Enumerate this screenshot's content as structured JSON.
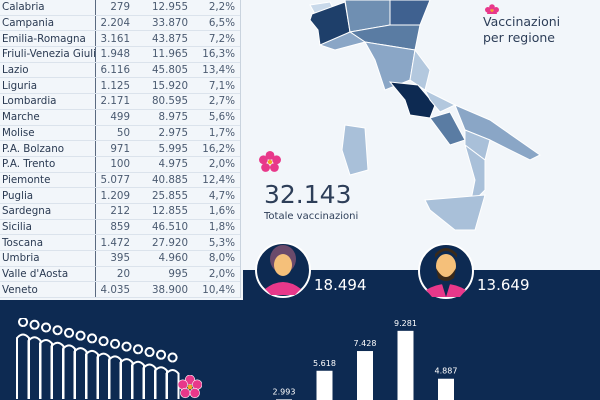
{
  "table": {
    "rows": [
      [
        "Calabria",
        "279",
        "12.955",
        "2,2%"
      ],
      [
        "Campania",
        "2.204",
        "33.870",
        "6,5%"
      ],
      [
        "Emilia-Romagna",
        "3.161",
        "43.875",
        "7,2%"
      ],
      [
        "Friuli-Venezia Giulia",
        "1.948",
        "11.965",
        "16,3%"
      ],
      [
        "Lazio",
        "6.116",
        "45.805",
        "13,4%"
      ],
      [
        "Liguria",
        "1.125",
        "15.920",
        "7,1%"
      ],
      [
        "Lombardia",
        "2.171",
        "80.595",
        "2,7%"
      ],
      [
        "Marche",
        "499",
        "8.975",
        "5,6%"
      ],
      [
        "Molise",
        "50",
        "2.975",
        "1,7%"
      ],
      [
        "P.A. Bolzano",
        "971",
        "5.995",
        "16,2%"
      ],
      [
        "P.A. Trento",
        "100",
        "4.975",
        "2,0%"
      ],
      [
        "Piemonte",
        "5.077",
        "40.885",
        "12,4%"
      ],
      [
        "Puglia",
        "1.209",
        "25.855",
        "4,7%"
      ],
      [
        "Sardegna",
        "212",
        "12.855",
        "1,6%"
      ],
      [
        "Sicilia",
        "859",
        "46.510",
        "1,8%"
      ],
      [
        "Toscana",
        "1.472",
        "27.920",
        "5,3%"
      ],
      [
        "Umbria",
        "395",
        "4.960",
        "8,0%"
      ],
      [
        "Valle d'Aosta",
        "20",
        "995",
        "2,0%"
      ],
      [
        "Veneto",
        "4.035",
        "38.900",
        "10,4%"
      ]
    ]
  },
  "map": {
    "title_line1": "Vaccinazioni",
    "title_line2": "per regione",
    "colors": {
      "dark": "#0d2a52",
      "mid": "#4a6d94",
      "light": "#a9c0d9",
      "pale": "#c9d9ea"
    }
  },
  "summary": {
    "total": "32.143",
    "total_label": "Totale vaccinazioni",
    "women": "18.494",
    "men": "13.649"
  },
  "colors": {
    "navy": "#0d2a52",
    "accent": "#e8388a",
    "background": "#f2f6fa"
  },
  "chart_data": {
    "type": "bar",
    "values": [
      2993,
      5618,
      7428,
      9281,
      4887
    ],
    "labels": [
      "2.993",
      "5.618",
      "7.428",
      "9.281",
      "4.887"
    ]
  }
}
